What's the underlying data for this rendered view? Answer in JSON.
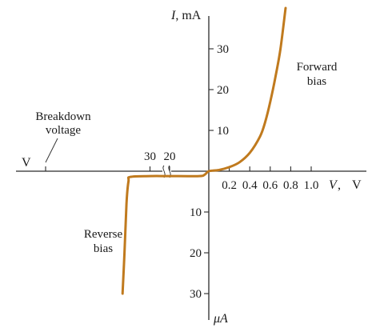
{
  "chart_data": {
    "type": "line",
    "title": "",
    "colors": {
      "curve": "#c07a1e",
      "axes": "#2b2b2b",
      "text": "#1a1a1a"
    },
    "axes": {
      "y_label": "I",
      "y_unit_upper": ", mA",
      "y_unit_lower": "μA",
      "x_label": "V",
      "x_unit": "V",
      "x_left_unit": "V"
    },
    "x_positive_ticks": [
      "0.2",
      "0.4",
      "0.6",
      "0.8",
      "1.0"
    ],
    "x_negative_ticks": [
      "30",
      "20"
    ],
    "y_positive_ticks": [
      "30",
      "20",
      "10"
    ],
    "y_negative_ticks": [
      "10",
      "20",
      "30"
    ],
    "annotations": {
      "forward": [
        "Forward",
        "bias"
      ],
      "reverse": [
        "Reverse",
        "bias"
      ],
      "breakdown": [
        "Breakdown",
        "voltage"
      ]
    },
    "series": [
      {
        "forward_branch": {
          "x_unit": "V",
          "y_unit": "mA",
          "x": [
            0.0,
            0.1,
            0.2,
            0.3,
            0.4,
            0.5,
            0.55,
            0.6,
            0.65,
            0.7,
            0.75
          ],
          "y": [
            0.0,
            0.3,
            1.0,
            2.2,
            4.5,
            8.5,
            12.0,
            17.0,
            23.0,
            30.0,
            40.0
          ]
        },
        "reverse_branch": {
          "x_unit": "V",
          "y_unit": "μA",
          "x": [
            0,
            -2,
            -5,
            -20,
            -30,
            -40,
            -41,
            -42,
            -43,
            -44
          ],
          "y": [
            0,
            -0.8,
            -1.2,
            -1.2,
            -1.2,
            -1.4,
            -2.5,
            -8.0,
            -20.0,
            -30.0
          ]
        }
      }
    ]
  }
}
